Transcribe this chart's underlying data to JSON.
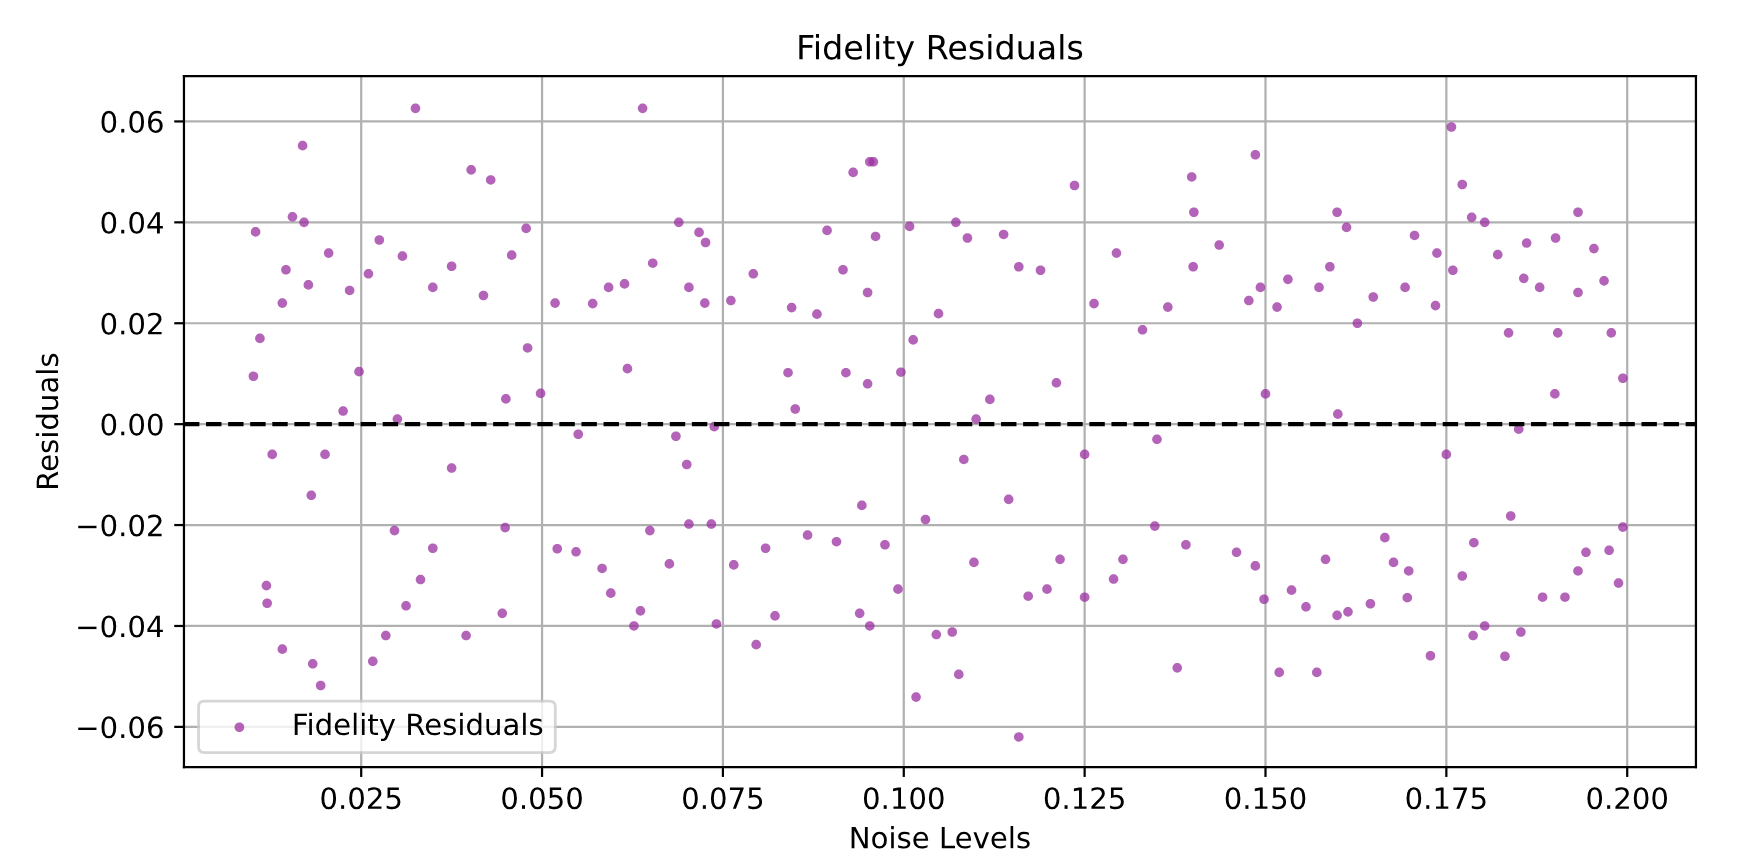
{
  "chart_data": {
    "type": "scatter",
    "title": "Fidelity Residuals",
    "xlabel": "Noise Levels",
    "ylabel": "Residuals",
    "x": [
      0.0325,
      0.0169,
      0.0104,
      0.0155,
      0.0171,
      0.0402,
      0.0429,
      0.0639,
      0.0689,
      0.0717,
      0.0726,
      0.0141,
      0.0183,
      0.0194,
      0.0266,
      0.0284,
      0.0395,
      0.0627,
      0.0636,
      0.0741,
      0.0796,
      0.0822,
      0.093,
      0.0953,
      0.0939,
      0.0953,
      0.0958,
      0.1008,
      0.1072,
      0.1017,
      0.1076,
      0.1045,
      0.1067,
      0.1159,
      0.1236,
      0.1398,
      0.1401,
      0.1486,
      0.1378,
      0.1519,
      0.1571,
      0.1599,
      0.1612,
      0.1757,
      0.1772,
      0.1785,
      0.1803,
      0.1728,
      0.1787,
      0.1803,
      0.1831,
      0.1853,
      0.1932,
      0.1954,
      0.1994,
      0.1988,
      0.1994,
      0.0101,
      0.011,
      0.0119,
      0.012,
      0.0127,
      0.0141,
      0.0146,
      0.0177,
      0.0181,
      0.0205,
      0.0225,
      0.0234,
      0.0247,
      0.026,
      0.0275,
      0.0296,
      0.0307,
      0.0349,
      0.0375,
      0.0349,
      0.0375,
      0.0332,
      0.0312,
      0.0419,
      0.0449,
      0.0445,
      0.0458,
      0.0478,
      0.048,
      0.0498,
      0.0518,
      0.0521,
      0.0547,
      0.057,
      0.0592,
      0.0583,
      0.0595,
      0.0614,
      0.0618,
      0.0653,
      0.0649,
      0.0676,
      0.0685,
      0.0703,
      0.0725,
      0.0703,
      0.0734,
      0.0738,
      0.0765,
      0.0761,
      0.0792,
      0.0809,
      0.084,
      0.0845,
      0.0867,
      0.088,
      0.0894,
      0.0907,
      0.0916,
      0.092,
      0.0942,
      0.0961,
      0.095,
      0.0974,
      0.0992,
      0.0996,
      0.1013,
      0.103,
      0.1048,
      0.1083,
      0.1088,
      0.1097,
      0.1119,
      0.1138,
      0.1145,
      0.1159,
      0.1172,
      0.1189,
      0.1198,
      0.1216,
      0.1211,
      0.125,
      0.1263,
      0.1294,
      0.129,
      0.1303,
      0.133,
      0.1347,
      0.1365,
      0.139,
      0.14,
      0.1436,
      0.146,
      0.1477,
      0.1493,
      0.1486,
      0.1498,
      0.1516,
      0.1531,
      0.1536,
      0.1556,
      0.1574,
      0.1589,
      0.1583,
      0.1599,
      0.1614,
      0.1627,
      0.1645,
      0.1649,
      0.1665,
      0.1677,
      0.1693,
      0.1698,
      0.1696,
      0.1706,
      0.1737,
      0.1735,
      0.1759,
      0.1772,
      0.1788,
      0.1821,
      0.1836,
      0.1839,
      0.1861,
      0.1857,
      0.1879,
      0.1883,
      0.1901,
      0.1904,
      0.1914,
      0.1932,
      0.1932,
      0.1943,
      0.1968,
      0.1975,
      0.1978,
      0.03,
      0.055,
      0.085,
      0.11,
      0.135,
      0.16,
      0.185,
      0.045,
      0.07,
      0.125,
      0.15,
      0.175,
      0.02,
      0.095,
      0.19
    ],
    "series": [
      {
        "name": "Fidelity Residuals",
        "color": "#9a2fa0",
        "values": [
          0.0626,
          0.0552,
          0.0381,
          0.0411,
          0.04,
          0.0504,
          0.0484,
          0.0626,
          0.04,
          0.038,
          0.036,
          -0.0446,
          -0.0475,
          -0.0518,
          -0.047,
          -0.0419,
          -0.0419,
          -0.04,
          -0.037,
          -0.0396,
          -0.0437,
          -0.038,
          0.0499,
          0.052,
          -0.0375,
          -0.04,
          0.052,
          0.0392,
          0.04,
          -0.0541,
          -0.0496,
          -0.0417,
          -0.0412,
          -0.062,
          0.0473,
          0.049,
          0.042,
          0.0534,
          -0.0483,
          -0.0492,
          -0.0492,
          0.042,
          0.039,
          0.0589,
          0.0475,
          0.041,
          0.04,
          -0.0459,
          -0.0419,
          -0.04,
          -0.046,
          -0.0412,
          0.042,
          0.0348,
          0.0091,
          -0.0315,
          -0.0204,
          0.0095,
          0.017,
          -0.032,
          -0.0355,
          -0.006,
          0.024,
          0.0306,
          0.0276,
          -0.0141,
          0.0339,
          0.0026,
          0.0265,
          0.0104,
          0.0298,
          0.0365,
          -0.0211,
          0.0333,
          0.0271,
          0.0313,
          -0.0246,
          -0.0087,
          -0.0308,
          -0.036,
          0.0255,
          -0.0205,
          -0.0375,
          0.0335,
          0.0388,
          0.0151,
          0.0061,
          0.024,
          -0.0247,
          -0.0253,
          0.0239,
          0.0271,
          -0.0286,
          -0.0335,
          0.0278,
          0.011,
          0.0319,
          -0.0211,
          -0.0277,
          -0.0024,
          0.0271,
          0.024,
          -0.0198,
          -0.0198,
          -0.0005,
          -0.0279,
          0.0245,
          0.0298,
          -0.0246,
          0.0102,
          0.0231,
          -0.022,
          0.0218,
          0.0384,
          -0.0233,
          0.0306,
          0.0102,
          -0.0161,
          0.0372,
          0.0261,
          -0.0239,
          -0.0327,
          0.0103,
          0.0167,
          -0.0189,
          0.0219,
          -0.007,
          0.0369,
          -0.0274,
          0.0049,
          0.0376,
          -0.0149,
          0.0312,
          -0.0341,
          0.0305,
          -0.0327,
          -0.0268,
          0.0082,
          -0.0343,
          0.0239,
          0.0339,
          -0.0307,
          -0.0268,
          0.0187,
          -0.0202,
          0.0232,
          -0.0239,
          0.0312,
          0.0355,
          -0.0254,
          0.0245,
          0.0271,
          -0.0281,
          -0.0347,
          0.0232,
          0.0287,
          -0.0329,
          -0.0362,
          0.0271,
          0.0312,
          -0.0268,
          -0.0379,
          -0.0372,
          0.02,
          -0.0356,
          0.0252,
          -0.0225,
          -0.0274,
          0.0271,
          -0.0291,
          -0.0344,
          0.0374,
          0.0339,
          0.0235,
          0.0305,
          -0.0301,
          -0.0235,
          0.0336,
          0.0181,
          -0.0182,
          0.0359,
          0.0289,
          0.0271,
          -0.0343,
          0.0369,
          0.0181,
          -0.0343,
          -0.0291,
          0.0261,
          -0.0254,
          0.0284,
          -0.025,
          0.0181,
          0.001,
          -0.002,
          0.003,
          0.001,
          -0.003,
          0.002,
          -0.001,
          0.005,
          -0.008,
          -0.006,
          0.006,
          -0.006,
          -0.006,
          0.008,
          0.006
        ]
      }
    ],
    "xlim": [
      0.0005,
      0.2095
    ],
    "ylim": [
      -0.068,
      0.069
    ],
    "xticks": [
      {
        "value": 0.025,
        "label": "0.025"
      },
      {
        "value": 0.05,
        "label": "0.050"
      },
      {
        "value": 0.075,
        "label": "0.075"
      },
      {
        "value": 0.1,
        "label": "0.100"
      },
      {
        "value": 0.125,
        "label": "0.125"
      },
      {
        "value": 0.15,
        "label": "0.150"
      },
      {
        "value": 0.175,
        "label": "0.175"
      },
      {
        "value": 0.2,
        "label": "0.200"
      }
    ],
    "yticks": [
      {
        "value": -0.06,
        "label": "−0.06"
      },
      {
        "value": -0.04,
        "label": "−0.04"
      },
      {
        "value": -0.02,
        "label": "−0.02"
      },
      {
        "value": 0.0,
        "label": "0.00"
      },
      {
        "value": 0.02,
        "label": "0.02"
      },
      {
        "value": 0.04,
        "label": "0.04"
      },
      {
        "value": 0.06,
        "label": "0.06"
      }
    ],
    "ref_lines": [
      {
        "axis": "y",
        "value": 0,
        "color": "#000000",
        "line_style": "dashed"
      }
    ],
    "grid": true,
    "legend": "bottom left",
    "marker": "circle"
  }
}
